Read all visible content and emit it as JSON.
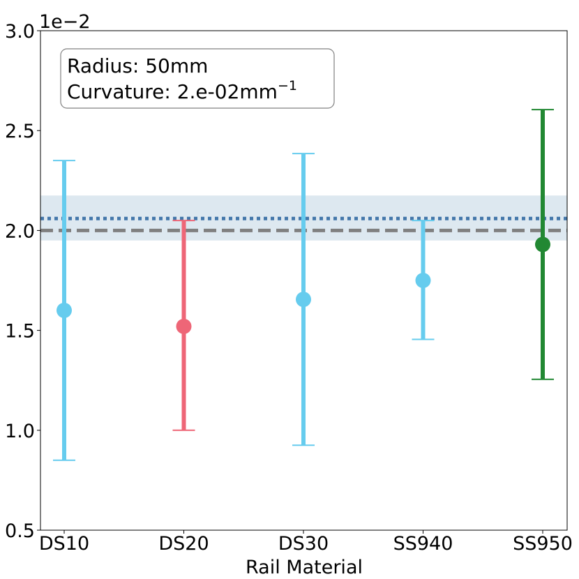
{
  "chart_data": {
    "type": "errorbar",
    "xlabel": "Rail Material",
    "ylabel": "",
    "y_offset_label": "1e−2",
    "categories": [
      "DS10",
      "DS20",
      "DS30",
      "SS940",
      "SS950"
    ],
    "ylim": [
      0.5,
      3.0
    ],
    "yticks": [
      "0.5",
      "1.0",
      "1.5",
      "2.0",
      "2.5",
      "3.0"
    ],
    "ytick_values": [
      0.5,
      1.0,
      1.5,
      2.0,
      2.5,
      3.0
    ],
    "grid": false,
    "points": [
      {
        "category": "DS10",
        "value": 1.6,
        "lower": 0.85,
        "upper": 2.35,
        "color": "#66ccee"
      },
      {
        "category": "DS20",
        "value": 1.52,
        "lower": 1.0,
        "upper": 2.05,
        "color": "#ee6677"
      },
      {
        "category": "DS30",
        "value": 1.655,
        "lower": 0.925,
        "upper": 2.385,
        "color": "#66ccee"
      },
      {
        "category": "SS940",
        "value": 1.75,
        "lower": 1.455,
        "upper": 2.05,
        "color": "#66ccee"
      },
      {
        "category": "SS950",
        "value": 1.93,
        "lower": 1.255,
        "upper": 2.605,
        "color": "#228833"
      }
    ],
    "reference_lines": [
      {
        "y": 2.0,
        "style": "dashed",
        "color": "#808080"
      },
      {
        "y": 2.06,
        "style": "dotted",
        "color": "#4477aa"
      }
    ],
    "band": {
      "y0": 1.95,
      "y1": 2.175,
      "color": "#dde8f0"
    },
    "annotation": {
      "line1": "Radius: 50mm",
      "line2_prefix": "Curvature: 2.e-02mm",
      "line2_sup": "−1",
      "position": "top-left"
    }
  }
}
